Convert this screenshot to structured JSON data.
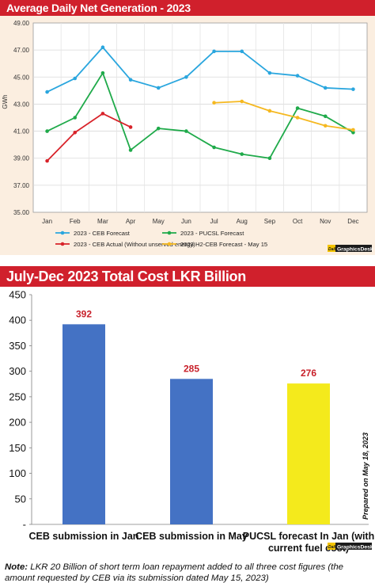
{
  "panel1": {
    "title": "Average Daily Net Generation - 2023",
    "credit": "GraphicsDesk",
    "credit_prefix": "Daily"
  },
  "panel2": {
    "title": "July-Dec 2023 Total Cost LKR Billion",
    "prepared": "Prepared on May 18, 2023",
    "credit": "GraphicsDesk",
    "credit_prefix": "Daily",
    "note_label": "Note:",
    "note_text": "LKR 20 Billion of short term loan repayment added to all three cost figures (the amount requested by CEB via its submission dated May 15, 2023)"
  },
  "chart_data": [
    {
      "type": "line",
      "title": "Average Daily Net Generation - 2023",
      "ylabel": "GWh",
      "ylim": [
        35,
        49
      ],
      "yticks": [
        "35.00",
        "37.00",
        "39.00",
        "41.00",
        "43.00",
        "45.00",
        "47.00",
        "49.00"
      ],
      "categories": [
        "Jan",
        "Feb",
        "Mar",
        "Apr",
        "May",
        "Jun",
        "Jul",
        "Aug",
        "Sep",
        "Oct",
        "Nov",
        "Dec"
      ],
      "grid": true,
      "legend": "bottom",
      "series": [
        {
          "name": "2023 - CEB Forecast",
          "color": "#2aa6de",
          "values": [
            43.9,
            44.9,
            47.2,
            44.8,
            44.2,
            45.0,
            46.9,
            46.9,
            45.3,
            45.1,
            44.2,
            44.1
          ]
        },
        {
          "name": "2023 - PUCSL Forecast",
          "color": "#1faa4a",
          "values": [
            41.0,
            42.0,
            45.3,
            39.6,
            41.2,
            41.0,
            39.8,
            39.3,
            39.0,
            42.7,
            42.1,
            40.9
          ]
        },
        {
          "name": "2023 - CEB Actual (Without unserved energy)",
          "color": "#d8232a",
          "values": [
            38.8,
            40.9,
            42.3,
            41.3,
            null,
            null,
            null,
            null,
            null,
            null,
            null,
            null
          ]
        },
        {
          "name": "2023 H2-CEB Forecast - May 15",
          "color": "#f5b820",
          "values": [
            null,
            null,
            null,
            null,
            null,
            null,
            43.1,
            43.2,
            42.5,
            42.0,
            41.4,
            41.1
          ]
        }
      ]
    },
    {
      "type": "bar",
      "title": "July-Dec 2023 Total Cost LKR Billion",
      "categories": [
        "CEB submission in Jan",
        "CEB submission in May",
        "PUCSL forecast In Jan (with current fuel cost)"
      ],
      "values": [
        392,
        285,
        276
      ],
      "value_labels": [
        "392",
        "285",
        "276"
      ],
      "colors": [
        "#4472c4",
        "#4472c4",
        "#f4ea1c"
      ],
      "ylim": [
        0,
        450
      ],
      "yticks": [
        "-",
        "50",
        "100",
        "150",
        "200",
        "250",
        "300",
        "350",
        "400",
        "450"
      ],
      "grid": false
    }
  ]
}
